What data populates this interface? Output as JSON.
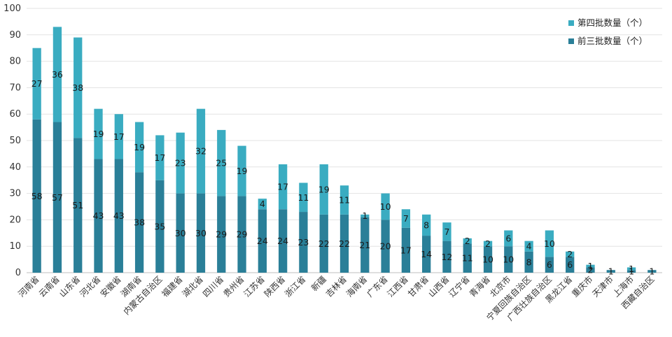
{
  "chart_data": {
    "type": "bar",
    "stacked": true,
    "categories": [
      "河南省",
      "云南省",
      "山东省",
      "河北省",
      "安徽省",
      "湖南省",
      "内蒙古自治区",
      "福建省",
      "湖北省",
      "四川省",
      "贵州省",
      "江苏省",
      "陕西省",
      "浙江省",
      "新疆",
      "吉林省",
      "海南省",
      "广东省",
      "江西省",
      "甘肃省",
      "山西省",
      "辽宁省",
      "青海省",
      "北京市",
      "宁夏回族自治区",
      "广西壮族自治区",
      "黑龙江省",
      "重庆市",
      "天津市",
      "上海市",
      "西藏自治区"
    ],
    "series": [
      {
        "name": "前三批数量（个）",
        "color": "#2a7f98",
        "values": [
          58,
          57,
          51,
          43,
          43,
          38,
          35,
          30,
          30,
          29,
          29,
          24,
          24,
          23,
          22,
          22,
          21,
          20,
          17,
          14,
          12,
          11,
          10,
          10,
          8,
          6,
          6,
          2,
          1,
          1,
          1
        ]
      },
      {
        "name": "第四批数量（个）",
        "color": "#3aacc1",
        "values": [
          27,
          36,
          38,
          19,
          17,
          19,
          17,
          23,
          32,
          25,
          19,
          4,
          17,
          11,
          19,
          11,
          1,
          10,
          7,
          8,
          7,
          2,
          2,
          6,
          4,
          10,
          2,
          1,
          0,
          1,
          0
        ]
      }
    ],
    "ylim": [
      0,
      100
    ],
    "yticks": [
      0,
      10,
      20,
      30,
      40,
      50,
      60,
      70,
      80,
      90,
      100
    ],
    "grid": true,
    "legend": "top-right",
    "title": "",
    "xlabel": "",
    "ylabel": ""
  }
}
